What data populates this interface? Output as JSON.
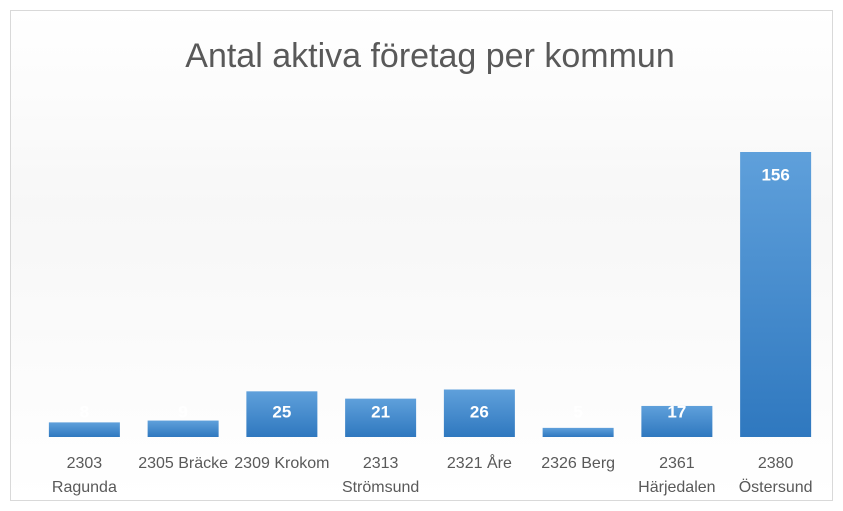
{
  "chart_data": {
    "type": "bar",
    "title": "Antal aktiva företag per kommun",
    "categories": [
      "2303 Ragunda",
      "2305 Bräcke",
      "2309 Krokom",
      "2313 Strömsund",
      "2321 Åre",
      "2326 Berg",
      "2361 Härjedalen",
      "2380 Östersund"
    ],
    "values": [
      8,
      9,
      25,
      21,
      26,
      5,
      17,
      156
    ],
    "color": "#4a8fd3"
  }
}
